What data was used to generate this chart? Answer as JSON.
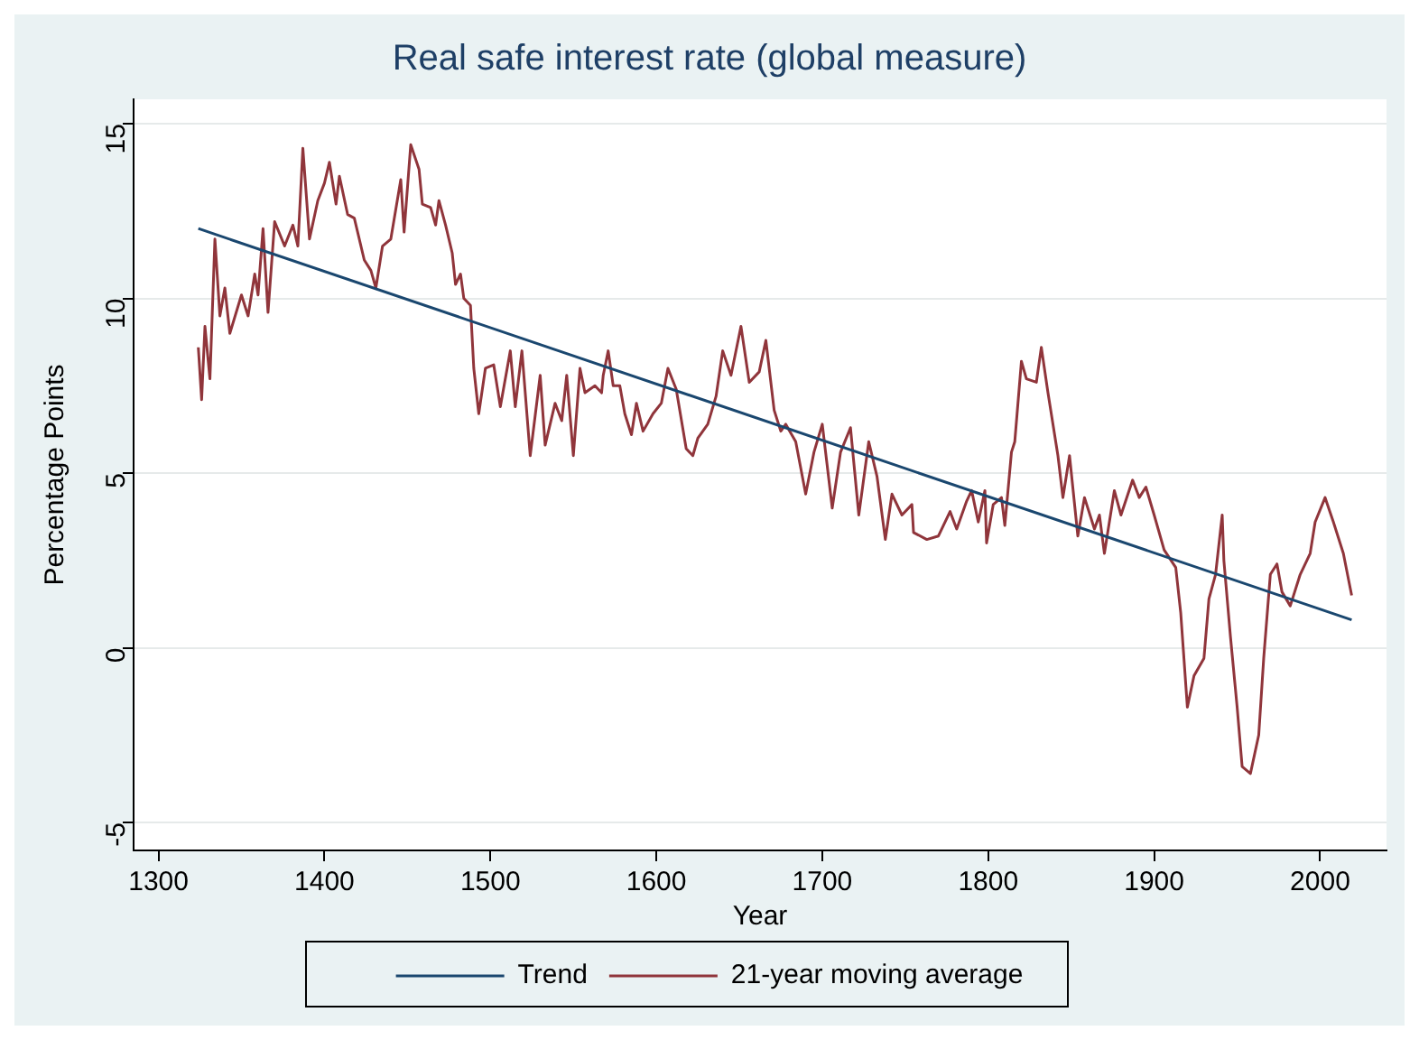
{
  "chart_data": {
    "type": "line",
    "title": "Real safe interest rate (global measure)",
    "xlabel": "Year",
    "ylabel": "Percentage Points",
    "xlim": [
      1285,
      2040
    ],
    "xticks": [
      1300,
      1400,
      1500,
      1600,
      1700,
      1800,
      1900,
      2000
    ],
    "ylim": [
      -5.8,
      15.7
    ],
    "yticks": [
      -5,
      0,
      5,
      10,
      15
    ],
    "grid": "y",
    "legend": "bottom",
    "marker": "none",
    "line_style": "solid",
    "series": [
      {
        "name": "Trend",
        "color": "#1a476f",
        "x": [
          1324,
          2019
        ],
        "values": [
          12.0,
          0.8
        ]
      },
      {
        "name": "21-year moving average",
        "color": "#90353b",
        "x": [
          1324,
          1326,
          1328,
          1331,
          1334,
          1337,
          1340,
          1343,
          1350,
          1354,
          1358,
          1360,
          1363,
          1366,
          1370,
          1376,
          1381,
          1384,
          1387,
          1391,
          1396,
          1400,
          1403,
          1407,
          1409,
          1414,
          1418,
          1424,
          1428,
          1431,
          1435,
          1440,
          1446,
          1448,
          1452,
          1457,
          1459,
          1464,
          1467,
          1469,
          1473,
          1477,
          1479,
          1482,
          1484,
          1488,
          1490,
          1493,
          1497,
          1502,
          1506,
          1512,
          1515,
          1519,
          1524,
          1530,
          1533,
          1539,
          1543,
          1546,
          1550,
          1554,
          1557,
          1563,
          1567,
          1568,
          1571,
          1574,
          1578,
          1581,
          1585,
          1588,
          1592,
          1598,
          1603,
          1607,
          1612,
          1618,
          1622,
          1625,
          1631,
          1636,
          1640,
          1645,
          1651,
          1656,
          1662,
          1666,
          1671,
          1675,
          1678,
          1684,
          1690,
          1695,
          1700,
          1706,
          1711,
          1717,
          1722,
          1728,
          1733,
          1738,
          1742,
          1748,
          1754,
          1755,
          1763,
          1770,
          1777,
          1781,
          1787,
          1790,
          1794,
          1798,
          1799,
          1803,
          1808,
          1810,
          1814,
          1816,
          1820,
          1823,
          1829,
          1832,
          1836,
          1842,
          1845,
          1849,
          1854,
          1858,
          1864,
          1867,
          1870,
          1876,
          1880,
          1887,
          1891,
          1895,
          1900,
          1906,
          1913,
          1916,
          1920,
          1924,
          1930,
          1933,
          1937,
          1941,
          1942,
          1946,
          1950,
          1953,
          1958,
          1963,
          1966,
          1970,
          1974,
          1977,
          1982,
          1988,
          1994,
          1997,
          2003,
          2008,
          2014,
          2019
        ],
        "values": [
          8.6,
          7.1,
          9.2,
          7.7,
          11.7,
          9.5,
          10.3,
          9.0,
          10.1,
          9.5,
          10.7,
          10.1,
          12.0,
          9.6,
          12.2,
          11.5,
          12.1,
          11.5,
          14.3,
          11.7,
          12.8,
          13.3,
          13.9,
          12.7,
          13.5,
          12.4,
          12.3,
          11.1,
          10.8,
          10.3,
          11.5,
          11.7,
          13.4,
          11.9,
          14.4,
          13.7,
          12.7,
          12.6,
          12.1,
          12.8,
          12.1,
          11.3,
          10.4,
          10.7,
          10.0,
          9.8,
          8.0,
          6.7,
          8.0,
          8.1,
          6.9,
          8.5,
          6.9,
          8.5,
          5.5,
          7.8,
          5.8,
          7.0,
          6.5,
          7.8,
          5.5,
          8.0,
          7.3,
          7.5,
          7.3,
          7.8,
          8.5,
          7.5,
          7.5,
          6.7,
          6.1,
          7.0,
          6.2,
          6.7,
          7.0,
          8.0,
          7.4,
          5.7,
          5.5,
          6.0,
          6.4,
          7.2,
          8.5,
          7.8,
          9.2,
          7.6,
          7.9,
          8.8,
          6.8,
          6.2,
          6.4,
          5.9,
          4.4,
          5.6,
          6.4,
          4.0,
          5.6,
          6.3,
          3.8,
          5.9,
          4.9,
          3.1,
          4.4,
          3.8,
          4.1,
          3.3,
          3.1,
          3.2,
          3.9,
          3.4,
          4.2,
          4.5,
          3.6,
          4.5,
          3.0,
          4.1,
          4.3,
          3.5,
          5.6,
          5.9,
          8.2,
          7.7,
          7.6,
          8.6,
          7.3,
          5.5,
          4.3,
          5.5,
          3.2,
          4.3,
          3.4,
          3.8,
          2.7,
          4.5,
          3.8,
          4.8,
          4.3,
          4.6,
          3.8,
          2.8,
          2.3,
          1.0,
          -1.7,
          -0.8,
          -0.3,
          1.4,
          2.1,
          3.8,
          2.5,
          0.3,
          -1.7,
          -3.4,
          -3.6,
          -2.5,
          -0.3,
          2.1,
          2.4,
          1.6,
          1.2,
          2.1,
          2.7,
          3.6,
          4.3,
          3.6,
          2.7,
          1.5
        ]
      }
    ]
  }
}
